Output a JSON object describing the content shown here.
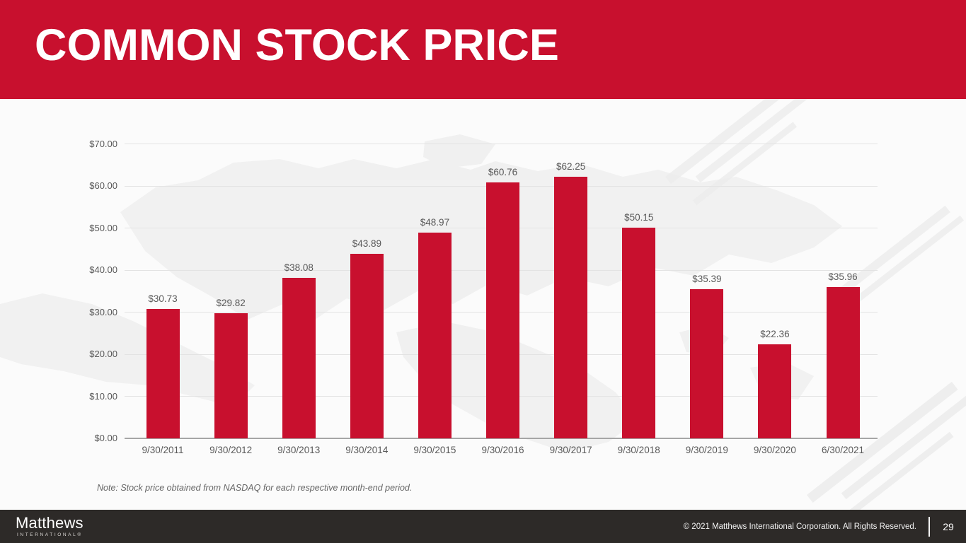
{
  "slide": {
    "title": "COMMON STOCK PRICE",
    "note": "Note: Stock price obtained from NASDAQ for each respective month-end period.",
    "footer": {
      "logo_primary": "Matthews",
      "logo_secondary": "INTERNATIONAL®",
      "copyright": "© 2021 Matthews International Corporation. All Rights Reserved.",
      "page_number": "29"
    }
  },
  "colors": {
    "brand_red": "#C8102E",
    "header_bg": "#C8102E",
    "footer_bg": "#2D2A28",
    "axis_text": "#595959",
    "gridline": "#E3E3E3",
    "axis_line": "#A6A6A6",
    "note_text": "#666666",
    "watermark_gray": "#EBEBEB"
  },
  "chart_data": {
    "type": "bar",
    "title": "",
    "xlabel": "",
    "ylabel": "",
    "categories": [
      "9/30/2011",
      "9/30/2012",
      "9/30/2013",
      "9/30/2014",
      "9/30/2015",
      "9/30/2016",
      "9/30/2017",
      "9/30/2018",
      "9/30/2019",
      "9/30/2020",
      "6/30/2021"
    ],
    "values": [
      30.73,
      29.82,
      38.08,
      43.89,
      48.97,
      60.76,
      62.25,
      50.15,
      35.39,
      22.36,
      35.96
    ],
    "value_labels": [
      "$30.73",
      "$29.82",
      "$38.08",
      "$43.89",
      "$48.97",
      "$60.76",
      "$62.25",
      "$50.15",
      "$35.39",
      "$22.36",
      "$35.96"
    ],
    "bar_color": "#C8102E",
    "ylim": [
      0,
      70
    ],
    "ytick_step": 10,
    "ytick_labels": [
      "$0.00",
      "$10.00",
      "$20.00",
      "$30.00",
      "$40.00",
      "$50.00",
      "$60.00",
      "$70.00"
    ],
    "grid": true,
    "legend": "none"
  }
}
